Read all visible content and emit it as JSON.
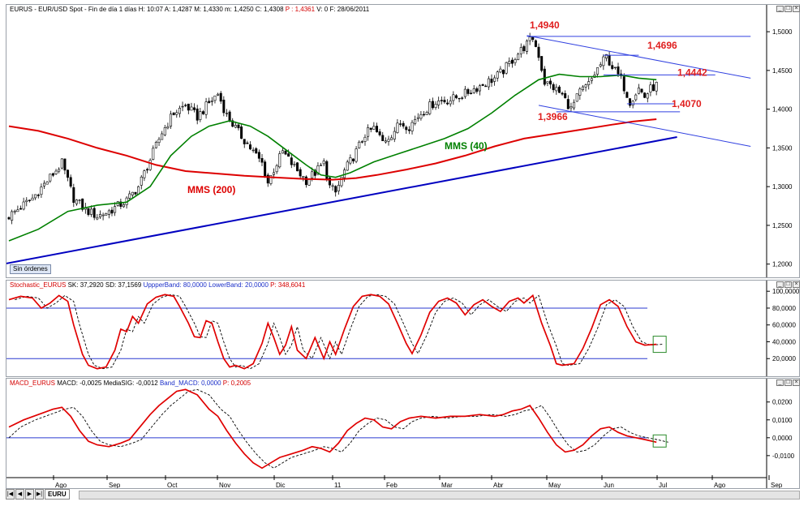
{
  "window": {
    "minimize": "_",
    "maximize": "□",
    "close": "×"
  },
  "price_pane": {
    "title_parts": [
      {
        "text": "EURUS - EUR/USD Spot - Fin de día 1 días  H: 10:07  A: 1,4287  M: 1,4330  m: 1,4250  C: 1,4308  ",
        "color": "#000000"
      },
      {
        "text": "P : 1,4361",
        "color": "#d40000"
      },
      {
        "text": "  V: 0  F: 28/06/2011",
        "color": "#000000"
      }
    ],
    "badge": "Sin órdenes"
  },
  "stoch_pane": {
    "title_parts": [
      {
        "text": "Stochastic_EURUS  ",
        "color": "#d40000"
      },
      {
        "text": "SK: 37,2920  SD: 37,1569  ",
        "color": "#000000"
      },
      {
        "text": "UppperBand: 80,0000  ",
        "color": "#1b2fc9"
      },
      {
        "text": "LowerBand: 20,0000  ",
        "color": "#1b2fc9"
      },
      {
        "text": "P: 348,6041",
        "color": "#d40000"
      }
    ]
  },
  "macd_pane": {
    "title_parts": [
      {
        "text": "MACD_EURUS  ",
        "color": "#d40000"
      },
      {
        "text": "MACD: -0,0025  MediaSIG: -0,0012  ",
        "color": "#000000"
      },
      {
        "text": "Band_MACD: 0,0000  ",
        "color": "#1b2fc9"
      },
      {
        "text": "P: 0,2005",
        "color": "#d40000"
      }
    ]
  },
  "bottom": {
    "tab_label": "EURU",
    "nav": [
      "|◀",
      "◀",
      "▶",
      "▶|"
    ]
  },
  "chart_data": [
    {
      "type": "candlestick",
      "name": "EURUS",
      "x_months": [
        "Ago",
        "Sep",
        "Oct",
        "Nov",
        "Dic",
        "11",
        "Feb",
        "Mar",
        "Abr",
        "May",
        "Jun",
        "Jul",
        "Ago",
        "Sep"
      ],
      "y_ticks": [
        "1,2000",
        "1,2500",
        "1,3000",
        "1,3500",
        "1,4000",
        "1,4500",
        "1,5000"
      ],
      "ylim": [
        1.185,
        1.52
      ],
      "close_path": [
        [
          0,
          1.262
        ],
        [
          8,
          1.285
        ],
        [
          14,
          1.312
        ],
        [
          18,
          1.33
        ],
        [
          22,
          1.285
        ],
        [
          26,
          1.27
        ],
        [
          30,
          1.262
        ],
        [
          34,
          1.268
        ],
        [
          40,
          1.282
        ],
        [
          44,
          1.3
        ],
        [
          48,
          1.335
        ],
        [
          52,
          1.37
        ],
        [
          56,
          1.395
        ],
        [
          60,
          1.405
        ],
        [
          64,
          1.39
        ],
        [
          68,
          1.408
        ],
        [
          71,
          1.42
        ],
        [
          74,
          1.392
        ],
        [
          78,
          1.37
        ],
        [
          82,
          1.35
        ],
        [
          86,
          1.33
        ],
        [
          88,
          1.305
        ],
        [
          90,
          1.322
        ],
        [
          93,
          1.345
        ],
        [
          97,
          1.325
        ],
        [
          101,
          1.308
        ],
        [
          104,
          1.318
        ],
        [
          107,
          1.33
        ],
        [
          109,
          1.3
        ],
        [
          111,
          1.292
        ],
        [
          114,
          1.32
        ],
        [
          118,
          1.345
        ],
        [
          121,
          1.368
        ],
        [
          124,
          1.375
        ],
        [
          127,
          1.358
        ],
        [
          130,
          1.368
        ],
        [
          133,
          1.382
        ],
        [
          136,
          1.378
        ],
        [
          140,
          1.395
        ],
        [
          145,
          1.41
        ],
        [
          150,
          1.412
        ],
        [
          155,
          1.42
        ],
        [
          160,
          1.43
        ],
        [
          165,
          1.44
        ],
        [
          168,
          1.45
        ],
        [
          172,
          1.468
        ],
        [
          176,
          1.484
        ],
        [
          178,
          1.492
        ],
        [
          180,
          1.47
        ],
        [
          182,
          1.435
        ],
        [
          185,
          1.428
        ],
        [
          188,
          1.418
        ],
        [
          191,
          1.4
        ],
        [
          194,
          1.422
        ],
        [
          197,
          1.432
        ],
        [
          200,
          1.452
        ],
        [
          203,
          1.468
        ],
        [
          205,
          1.455
        ],
        [
          208,
          1.438
        ],
        [
          211,
          1.41
        ],
        [
          214,
          1.427
        ],
        [
          216,
          1.416
        ],
        [
          218,
          1.426
        ],
        [
          220,
          1.431
        ]
      ],
      "sma_40": {
        "label": "MMS (40)",
        "color": "#008000",
        "points": [
          [
            0,
            1.23
          ],
          [
            10,
            1.245
          ],
          [
            20,
            1.268
          ],
          [
            30,
            1.276
          ],
          [
            40,
            1.28
          ],
          [
            48,
            1.3
          ],
          [
            55,
            1.34
          ],
          [
            62,
            1.365
          ],
          [
            68,
            1.378
          ],
          [
            75,
            1.385
          ],
          [
            82,
            1.378
          ],
          [
            88,
            1.365
          ],
          [
            95,
            1.345
          ],
          [
            101,
            1.328
          ],
          [
            106,
            1.315
          ],
          [
            111,
            1.312
          ],
          [
            116,
            1.318
          ],
          [
            124,
            1.332
          ],
          [
            132,
            1.342
          ],
          [
            140,
            1.352
          ],
          [
            148,
            1.362
          ],
          [
            156,
            1.375
          ],
          [
            164,
            1.395
          ],
          [
            172,
            1.418
          ],
          [
            180,
            1.438
          ],
          [
            187,
            1.445
          ],
          [
            194,
            1.442
          ],
          [
            201,
            1.442
          ],
          [
            208,
            1.444
          ],
          [
            214,
            1.44
          ],
          [
            220,
            1.438
          ]
        ]
      },
      "sma_200": {
        "label": "MMS (200)",
        "color": "#dd0000",
        "points": [
          [
            0,
            1.378
          ],
          [
            10,
            1.372
          ],
          [
            20,
            1.362
          ],
          [
            30,
            1.35
          ],
          [
            40,
            1.34
          ],
          [
            50,
            1.328
          ],
          [
            60,
            1.32
          ],
          [
            70,
            1.317
          ],
          [
            80,
            1.314
          ],
          [
            90,
            1.312
          ],
          [
            100,
            1.31
          ],
          [
            110,
            1.309
          ],
          [
            118,
            1.311
          ],
          [
            125,
            1.315
          ],
          [
            135,
            1.322
          ],
          [
            145,
            1.33
          ],
          [
            155,
            1.34
          ],
          [
            165,
            1.352
          ],
          [
            175,
            1.362
          ],
          [
            185,
            1.368
          ],
          [
            195,
            1.374
          ],
          [
            205,
            1.38
          ],
          [
            212,
            1.384
          ],
          [
            220,
            1.387
          ]
        ]
      },
      "trendline_support": {
        "color": "#0000c0",
        "from": [
          -2,
          1.2
        ],
        "to": [
          227,
          1.364
        ]
      },
      "channel_upper": {
        "color": "#3040e0",
        "from": [
          176,
          1.495
        ],
        "to": [
          252,
          1.44
        ]
      },
      "channel_lower": {
        "color": "#3040e0",
        "from": [
          180,
          1.405
        ],
        "to": [
          252,
          1.352
        ]
      },
      "levels": [
        {
          "value": 1.494,
          "text": "1,4940",
          "from": 176,
          "to": 252
        },
        {
          "value": 1.4696,
          "text": "1,4696",
          "from": 202,
          "to": 214
        },
        {
          "value": 1.4442,
          "text": "1,4442",
          "from": 202,
          "to": 240
        },
        {
          "value": 1.407,
          "text": "1,4070",
          "from": 210,
          "to": 226
        },
        {
          "value": 1.3966,
          "text": "1,3966",
          "from": 186,
          "to": 228
        }
      ]
    },
    {
      "type": "line",
      "name": "Stochastic_EURUS",
      "y_ticks": [
        "20,0000",
        "40,0000",
        "60,0000",
        "80,0000",
        "100,0000"
      ],
      "ylim": [
        0,
        105
      ],
      "bands": [
        80,
        20
      ],
      "sk": [
        [
          0,
          90
        ],
        [
          4,
          94
        ],
        [
          8,
          92
        ],
        [
          11,
          80
        ],
        [
          14,
          86
        ],
        [
          17,
          95
        ],
        [
          20,
          88
        ],
        [
          22,
          60
        ],
        [
          25,
          25
        ],
        [
          27,
          12
        ],
        [
          30,
          8
        ],
        [
          33,
          10
        ],
        [
          36,
          30
        ],
        [
          38,
          55
        ],
        [
          40,
          52
        ],
        [
          42,
          70
        ],
        [
          44,
          62
        ],
        [
          47,
          85
        ],
        [
          50,
          93
        ],
        [
          53,
          96
        ],
        [
          56,
          94
        ],
        [
          58,
          82
        ],
        [
          61,
          62
        ],
        [
          63,
          46
        ],
        [
          65,
          45
        ],
        [
          67,
          65
        ],
        [
          69,
          62
        ],
        [
          71,
          40
        ],
        [
          73,
          20
        ],
        [
          75,
          10
        ],
        [
          77,
          12
        ],
        [
          80,
          8
        ],
        [
          83,
          14
        ],
        [
          86,
          38
        ],
        [
          88,
          62
        ],
        [
          90,
          45
        ],
        [
          92,
          25
        ],
        [
          94,
          36
        ],
        [
          96,
          58
        ],
        [
          98,
          30
        ],
        [
          101,
          20
        ],
        [
          104,
          45
        ],
        [
          107,
          20
        ],
        [
          109,
          40
        ],
        [
          111,
          25
        ],
        [
          114,
          55
        ],
        [
          117,
          82
        ],
        [
          120,
          94
        ],
        [
          123,
          96
        ],
        [
          126,
          94
        ],
        [
          129,
          85
        ],
        [
          132,
          62
        ],
        [
          135,
          38
        ],
        [
          137,
          26
        ],
        [
          140,
          48
        ],
        [
          143,
          75
        ],
        [
          146,
          88
        ],
        [
          149,
          92
        ],
        [
          152,
          86
        ],
        [
          155,
          72
        ],
        [
          158,
          84
        ],
        [
          161,
          90
        ],
        [
          164,
          82
        ],
        [
          167,
          76
        ],
        [
          170,
          88
        ],
        [
          173,
          92
        ],
        [
          175,
          86
        ],
        [
          178,
          95
        ],
        [
          181,
          62
        ],
        [
          184,
          35
        ],
        [
          186,
          14
        ],
        [
          188,
          12
        ],
        [
          192,
          14
        ],
        [
          195,
          32
        ],
        [
          198,
          56
        ],
        [
          201,
          84
        ],
        [
          204,
          90
        ],
        [
          207,
          82
        ],
        [
          210,
          58
        ],
        [
          213,
          40
        ],
        [
          216,
          36
        ],
        [
          220,
          37
        ]
      ],
      "sd_offset": 2
    },
    {
      "type": "line",
      "name": "MACD_EURUS",
      "y_ticks": [
        "-0,0100",
        "0,0000",
        "0,0100",
        "0,0200"
      ],
      "ylim": [
        -0.0205,
        0.0285
      ],
      "band": 0,
      "macd": [
        [
          0,
          0.006
        ],
        [
          5,
          0.01
        ],
        [
          10,
          0.013
        ],
        [
          15,
          0.016
        ],
        [
          18,
          0.017
        ],
        [
          21,
          0.012
        ],
        [
          24,
          0.004
        ],
        [
          27,
          -0.002
        ],
        [
          30,
          -0.004
        ],
        [
          34,
          -0.005
        ],
        [
          38,
          -0.003
        ],
        [
          41,
          -0.001
        ],
        [
          44,
          0.005
        ],
        [
          48,
          0.013
        ],
        [
          51,
          0.018
        ],
        [
          54,
          0.022
        ],
        [
          57,
          0.026
        ],
        [
          60,
          0.027
        ],
        [
          64,
          0.024
        ],
        [
          68,
          0.016
        ],
        [
          71,
          0.012
        ],
        [
          74,
          0.004
        ],
        [
          77,
          -0.003
        ],
        [
          80,
          -0.009
        ],
        [
          83,
          -0.014
        ],
        [
          86,
          -0.017
        ],
        [
          89,
          -0.014
        ],
        [
          92,
          -0.011
        ],
        [
          96,
          -0.009
        ],
        [
          100,
          -0.007
        ],
        [
          103,
          -0.005
        ],
        [
          106,
          -0.006
        ],
        [
          109,
          -0.008
        ],
        [
          112,
          -0.003
        ],
        [
          115,
          0.004
        ],
        [
          118,
          0.008
        ],
        [
          121,
          0.011
        ],
        [
          124,
          0.01
        ],
        [
          127,
          0.006
        ],
        [
          130,
          0.005
        ],
        [
          133,
          0.009
        ],
        [
          136,
          0.011
        ],
        [
          140,
          0.012
        ],
        [
          145,
          0.011
        ],
        [
          150,
          0.012
        ],
        [
          155,
          0.012
        ],
        [
          160,
          0.013
        ],
        [
          165,
          0.012
        ],
        [
          168,
          0.013
        ],
        [
          171,
          0.015
        ],
        [
          174,
          0.016
        ],
        [
          177,
          0.018
        ],
        [
          180,
          0.011
        ],
        [
          183,
          0.003
        ],
        [
          186,
          -0.004
        ],
        [
          189,
          -0.008
        ],
        [
          192,
          -0.007
        ],
        [
          195,
          -0.004
        ],
        [
          198,
          0.001
        ],
        [
          201,
          0.005
        ],
        [
          204,
          0.006
        ],
        [
          207,
          0.003
        ],
        [
          210,
          0.001
        ],
        [
          213,
          0.0
        ],
        [
          216,
          -0.001
        ],
        [
          220,
          -0.0025
        ]
      ],
      "sig_lag": 4
    }
  ]
}
